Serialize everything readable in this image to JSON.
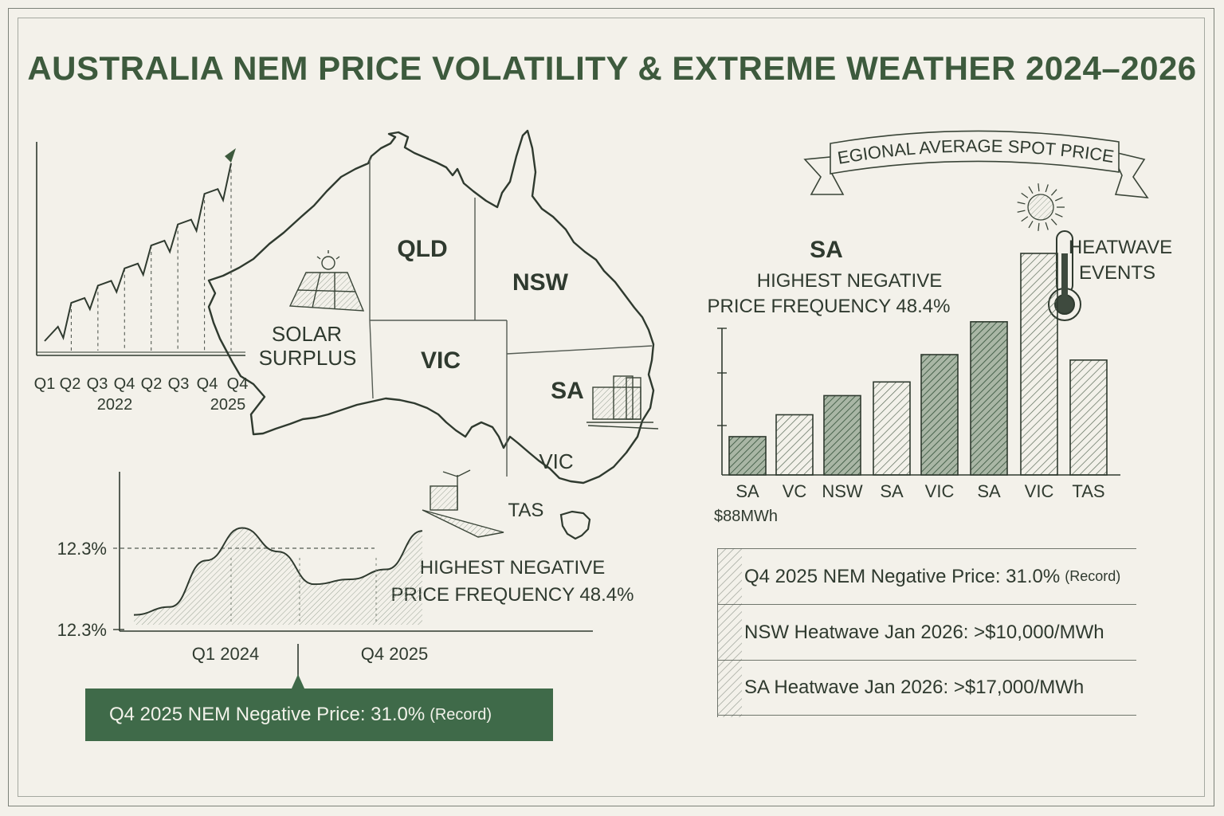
{
  "title": "AUSTRALIA NEM PRICE VOLATILITY & EXTREME WEATHER 2024–2026",
  "map": {
    "regions": [
      "QLD",
      "NSW",
      "VIC",
      "SA",
      "VIC",
      "TAS"
    ],
    "solar_line1": "SOLAR",
    "solar_line2": "SURPLUS",
    "note_line1": "HIGHEST NEGATIVE",
    "note_line2": "PRICE FREQUENCY 48.4%",
    "icons": [
      "solar-panel-icon",
      "power-plant-icon",
      "wind-farm-icon"
    ]
  },
  "chart_data": [
    {
      "type": "line",
      "categories": [
        "Q1",
        "Q2",
        "Q3",
        "Q4",
        "Q2",
        "Q3",
        "Q4",
        "Q4"
      ],
      "year_labels": [
        "2022",
        "2025"
      ],
      "values": [
        1,
        2.5,
        3.4,
        4.3,
        5.5,
        6.6,
        8.2,
        9.8
      ],
      "trend": "rising"
    },
    {
      "type": "area",
      "y_tick_labels": [
        "12.3%",
        "12.3%"
      ],
      "x_tick_labels": [
        "Q1 2024",
        "Q4 2025"
      ],
      "values": [
        1,
        1.8,
        6.5,
        9.8,
        7.4,
        4.1,
        4.6,
        5.6,
        9.5
      ],
      "reference_line_label": "12.3%"
    },
    {
      "type": "bar",
      "title": "REGIONAL AVERAGE SPOT PRICES",
      "categories": [
        "SA",
        "VC",
        "NSW",
        "SA",
        "VIC",
        "SA",
        "VIC",
        "TAS"
      ],
      "values": [
        1.4,
        2.2,
        2.9,
        3.4,
        4.4,
        5.6,
        8.1,
        4.2
      ],
      "unit_label": "$88MWh",
      "highlight_line1": "SA",
      "highlight_line2": "HIGHEST NEGATIVE",
      "highlight_line3": "PRICE FREQUENCY 48.4%",
      "annotation_line1": "HEATWAVE",
      "annotation_line2": "EVENTS"
    }
  ],
  "facts": [
    {
      "text": "Q4 2025 NEM Negative Price: 31.0%",
      "note": "(Record)"
    },
    {
      "text": "NSW Heatwave Jan 2026: >$10,000/MWh"
    },
    {
      "text": "SA Heatwave Jan 2026: >$17,000/MWh"
    }
  ],
  "callout": {
    "text": "Q4 2025 NEM Negative Price: 31.0%",
    "note": "(Record)"
  },
  "colors": {
    "background": "#f3f1ea",
    "accent": "#3f6a49",
    "ink": "#2f3a2f",
    "title": "#3d5a3d"
  }
}
